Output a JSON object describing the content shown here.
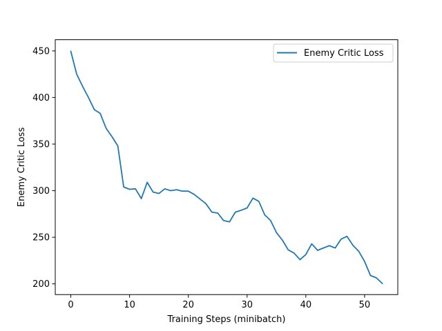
{
  "chart_data": {
    "type": "line",
    "title": "",
    "xlabel": "Training Steps (minibatch)",
    "ylabel": "Enemy Critic Loss",
    "xlim": [
      -2.65,
      55.65
    ],
    "ylim": [
      188.5,
      462
    ],
    "xticks": [
      0,
      10,
      20,
      30,
      40,
      50
    ],
    "yticks": [
      200,
      250,
      300,
      350,
      400,
      450
    ],
    "grid": false,
    "legend_position": "top-right",
    "series": [
      {
        "name": "Enemy Critic Loss",
        "color": "#1f77b4",
        "x": [
          0,
          1,
          2,
          3,
          4,
          5,
          6,
          7,
          8,
          9,
          10,
          11,
          12,
          13,
          14,
          15,
          16,
          17,
          18,
          19,
          20,
          21,
          22,
          23,
          24,
          25,
          26,
          27,
          28,
          29,
          30,
          31,
          32,
          33,
          34,
          35,
          36,
          37,
          38,
          39,
          40,
          41,
          42,
          43,
          44,
          45,
          46,
          47,
          48,
          49,
          50,
          51,
          52,
          53
        ],
        "values": [
          449.5,
          425,
          412,
          400,
          387,
          383,
          367,
          358,
          348,
          304,
          301.5,
          302,
          291.5,
          309,
          298.5,
          297,
          302,
          300,
          301,
          299.5,
          299.5,
          296,
          291,
          286,
          277,
          276,
          268,
          266.5,
          277,
          279,
          281.5,
          292,
          288.5,
          274,
          268,
          255,
          247,
          236.5,
          233,
          226,
          231.5,
          243,
          236,
          238.5,
          241,
          238.5,
          248,
          251,
          241.5,
          235,
          224,
          209,
          206.5,
          200.5
        ]
      }
    ]
  }
}
